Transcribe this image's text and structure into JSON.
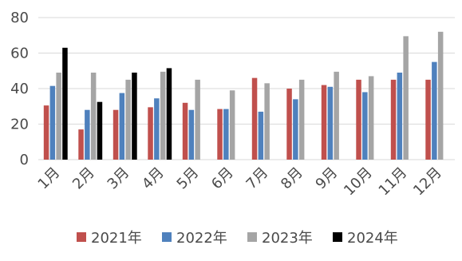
{
  "chart_data": {
    "type": "bar",
    "categories": [
      "1月",
      "2月",
      "3月",
      "4月",
      "5月",
      "6月",
      "7月",
      "8月",
      "9月",
      "10月",
      "11月",
      "12月"
    ],
    "series": [
      {
        "name": "2021年",
        "color": "#c0504d",
        "values": [
          30.5,
          17,
          28,
          29.5,
          32,
          28.5,
          46,
          40,
          42,
          45,
          45,
          45
        ]
      },
      {
        "name": "2022年",
        "color": "#4f81bd",
        "values": [
          41.5,
          28,
          37.5,
          34.5,
          28,
          28.5,
          27,
          34,
          41,
          38,
          49,
          55
        ]
      },
      {
        "name": "2023年",
        "color": "#a5a5a5",
        "values": [
          49,
          49,
          45,
          49.5,
          45,
          39,
          43,
          45,
          49.5,
          47,
          69.5,
          72
        ]
      },
      {
        "name": "2024年",
        "color": "#000000",
        "values": [
          63,
          32.5,
          49,
          51.5,
          null,
          null,
          null,
          null,
          null,
          null,
          null,
          null
        ]
      }
    ],
    "yticks": [
      0,
      20,
      40,
      60,
      80
    ],
    "ylim": [
      0,
      80
    ],
    "grid": true,
    "legend": "bottom"
  }
}
